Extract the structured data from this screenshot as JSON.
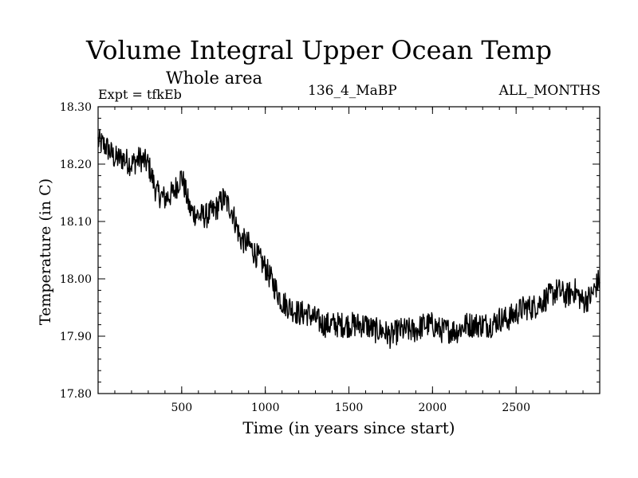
{
  "chart_data": {
    "type": "line",
    "title": "Volume Integral Upper Ocean Temp",
    "subtitle": "Whole area",
    "annotations": {
      "expt": "Expt = tfkEb",
      "run": "136_4_MaBP",
      "months": "ALL_MONTHS"
    },
    "xlabel": "Time (in years since start)",
    "ylabel": "Temperature (in C)",
    "xlim": [
      0,
      3000
    ],
    "ylim": [
      17.8,
      18.3
    ],
    "xticks": [
      500,
      1000,
      1500,
      2000,
      2500
    ],
    "xtick_labels": [
      "500",
      "1000",
      "1500",
      "2000",
      "2500"
    ],
    "yticks": [
      17.8,
      17.9,
      18.0,
      18.1,
      18.2,
      18.3
    ],
    "ytick_labels": [
      "17.80",
      "17.90",
      "18.00",
      "18.10",
      "18.20",
      "18.30"
    ],
    "grid": false,
    "series": [
      {
        "color": "#000000",
        "x": [
          0,
          50,
          100,
          150,
          200,
          250,
          300,
          350,
          400,
          450,
          500,
          550,
          600,
          650,
          700,
          750,
          800,
          850,
          900,
          950,
          1000,
          1050,
          1100,
          1150,
          1200,
          1250,
          1300,
          1350,
          1400,
          1450,
          1500,
          1550,
          1600,
          1650,
          1700,
          1750,
          1800,
          1850,
          1900,
          1950,
          2000,
          2050,
          2100,
          2150,
          2200,
          2250,
          2300,
          2350,
          2400,
          2450,
          2500,
          2550,
          2600,
          2650,
          2700,
          2750,
          2800,
          2850,
          2900,
          2950,
          3000
        ],
        "y": [
          18.24,
          18.23,
          18.21,
          18.21,
          18.2,
          18.21,
          18.2,
          18.15,
          18.14,
          18.15,
          18.18,
          18.12,
          18.11,
          18.11,
          18.12,
          18.14,
          18.12,
          18.07,
          18.06,
          18.04,
          18.02,
          17.99,
          17.96,
          17.95,
          17.94,
          17.94,
          17.93,
          17.92,
          17.92,
          17.92,
          17.92,
          17.92,
          17.92,
          17.91,
          17.91,
          17.9,
          17.91,
          17.91,
          17.91,
          17.92,
          17.92,
          17.91,
          17.91,
          17.91,
          17.92,
          17.92,
          17.92,
          17.92,
          17.93,
          17.93,
          17.94,
          17.95,
          17.95,
          17.96,
          17.97,
          17.98,
          17.97,
          17.98,
          17.96,
          17.97,
          18.0
        ]
      }
    ]
  }
}
